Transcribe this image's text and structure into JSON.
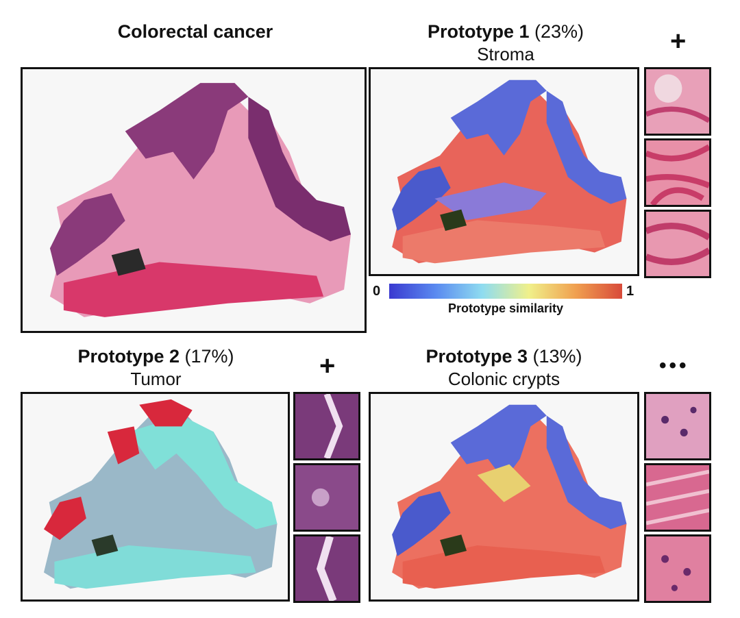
{
  "main": {
    "title": "Colorectal cancer"
  },
  "prototypes": [
    {
      "name": "Prototype 1",
      "pct": "(23%)",
      "label": "Stroma"
    },
    {
      "name": "Prototype 2",
      "pct": "(17%)",
      "label": "Tumor"
    },
    {
      "name": "Prototype 3",
      "pct": "(13%)",
      "label": "Colonic crypts"
    }
  ],
  "markers": {
    "plus": "+",
    "more": "•••"
  },
  "colorbar": {
    "min": "0",
    "max": "1",
    "label": "Prototype similarity",
    "colors": [
      "#3a3ad0",
      "#5a8af0",
      "#8fdcf0",
      "#f0f08a",
      "#f0a050",
      "#d84a3a"
    ]
  },
  "colors": {
    "he_pink": "#e07aa0",
    "he_purple": "#8a3a7a",
    "tumor_red": "#d8283c",
    "cyan": "#7ee8e0",
    "border": "#111111"
  }
}
